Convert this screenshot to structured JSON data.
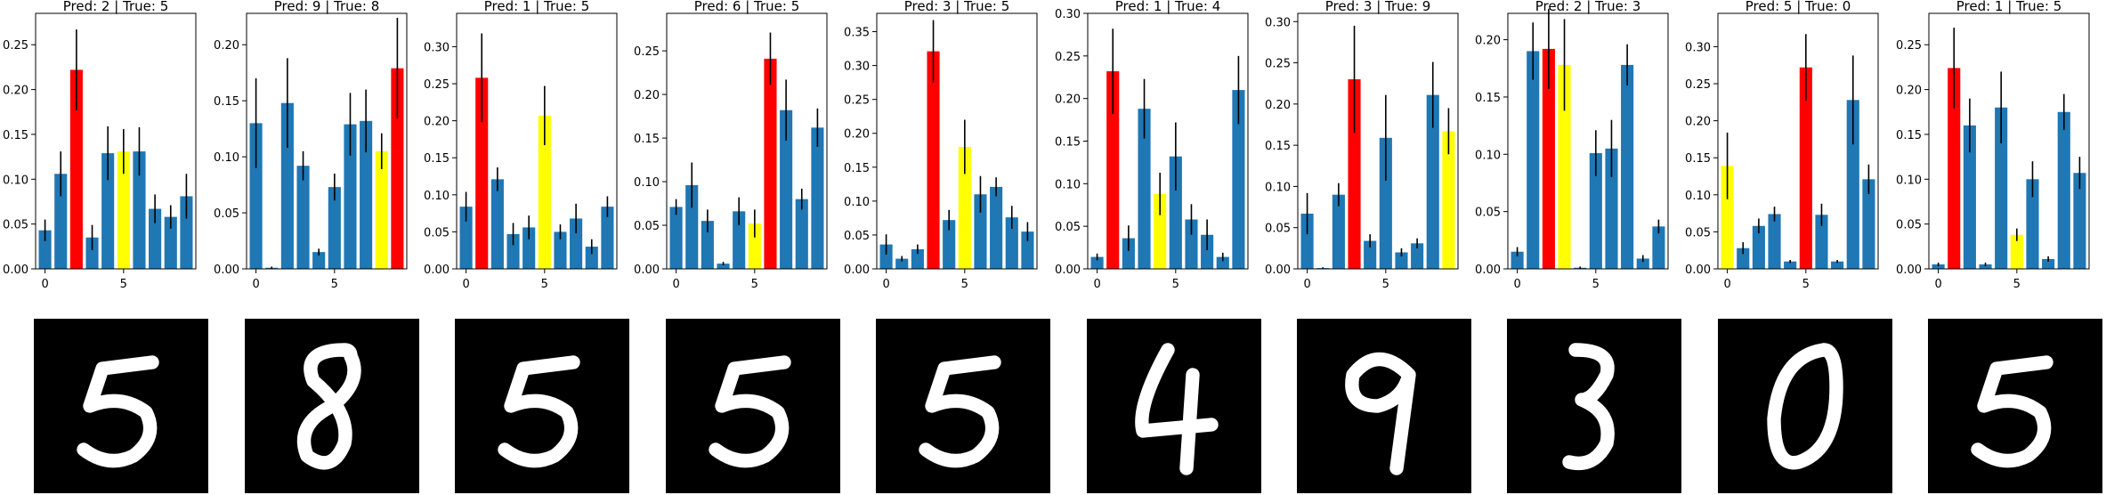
{
  "colors": {
    "bar": "#1f77b4",
    "predicted": "#ff0000",
    "true": "#ffff00",
    "error": "#000000",
    "image_bg": "#000000"
  },
  "chart_data": [
    {
      "type": "bar",
      "title": "Pred: 2 | True: 5",
      "pred": 2,
      "true": 5,
      "categories": [
        0,
        1,
        2,
        3,
        4,
        5,
        6,
        7,
        8,
        9
      ],
      "xticks": [
        "0",
        "5"
      ],
      "values": [
        0.043,
        0.106,
        0.222,
        0.035,
        0.129,
        0.131,
        0.131,
        0.067,
        0.058,
        0.081
      ],
      "errors": [
        0.012,
        0.025,
        0.045,
        0.014,
        0.03,
        0.025,
        0.027,
        0.016,
        0.013,
        0.025
      ],
      "ylim": [
        0,
        0.285
      ],
      "yticks": [
        "0.00",
        "0.05",
        "0.10",
        "0.15",
        "0.20",
        "0.25"
      ],
      "ytick_values": [
        0,
        0.05,
        0.1,
        0.15,
        0.2,
        0.25
      ],
      "digit_icon": "handwritten-digit-5"
    },
    {
      "type": "bar",
      "title": "Pred: 9 | True: 8",
      "pred": 9,
      "true": 8,
      "categories": [
        0,
        1,
        2,
        3,
        4,
        5,
        6,
        7,
        8,
        9
      ],
      "xticks": [
        "0",
        "5"
      ],
      "values": [
        0.13,
        0.001,
        0.148,
        0.092,
        0.015,
        0.073,
        0.129,
        0.132,
        0.105,
        0.179
      ],
      "errors": [
        0.04,
        0.001,
        0.04,
        0.013,
        0.003,
        0.012,
        0.028,
        0.028,
        0.016,
        0.045
      ],
      "ylim": [
        0,
        0.228
      ],
      "yticks": [
        "0.00",
        "0.05",
        "0.10",
        "0.15",
        "0.20"
      ],
      "ytick_values": [
        0,
        0.05,
        0.1,
        0.15,
        0.2
      ],
      "digit_icon": "handwritten-digit-8"
    },
    {
      "type": "bar",
      "title": "Pred: 1 | True: 5",
      "pred": 1,
      "true": 5,
      "categories": [
        0,
        1,
        2,
        3,
        4,
        5,
        6,
        7,
        8,
        9
      ],
      "xticks": [
        "0",
        "5"
      ],
      "values": [
        0.084,
        0.258,
        0.121,
        0.047,
        0.056,
        0.207,
        0.05,
        0.068,
        0.03,
        0.084
      ],
      "errors": [
        0.02,
        0.06,
        0.016,
        0.015,
        0.016,
        0.04,
        0.01,
        0.02,
        0.01,
        0.014
      ],
      "ylim": [
        0,
        0.345
      ],
      "yticks": [
        "0.00",
        "0.05",
        "0.10",
        "0.15",
        "0.20",
        "0.25",
        "0.30"
      ],
      "ytick_values": [
        0,
        0.05,
        0.1,
        0.15,
        0.2,
        0.25,
        0.3
      ],
      "digit_icon": "handwritten-digit-5"
    },
    {
      "type": "bar",
      "title": "Pred: 6 | True: 5",
      "pred": 6,
      "true": 5,
      "categories": [
        0,
        1,
        2,
        3,
        4,
        5,
        6,
        7,
        8,
        9
      ],
      "xticks": [
        "0",
        "5"
      ],
      "values": [
        0.071,
        0.096,
        0.055,
        0.006,
        0.066,
        0.052,
        0.241,
        0.182,
        0.08,
        0.162
      ],
      "errors": [
        0.009,
        0.026,
        0.013,
        0.002,
        0.016,
        0.016,
        0.03,
        0.035,
        0.012,
        0.022
      ],
      "ylim": [
        0,
        0.293
      ],
      "yticks": [
        "0.00",
        "0.05",
        "0.10",
        "0.15",
        "0.20",
        "0.25"
      ],
      "ytick_values": [
        0,
        0.05,
        0.1,
        0.15,
        0.2,
        0.25
      ],
      "digit_icon": "handwritten-digit-5"
    },
    {
      "type": "bar",
      "title": "Pred: 3 | True: 5",
      "pred": 3,
      "true": 5,
      "categories": [
        0,
        1,
        2,
        3,
        4,
        5,
        6,
        7,
        8,
        9
      ],
      "xticks": [
        "0",
        "5"
      ],
      "values": [
        0.036,
        0.015,
        0.029,
        0.321,
        0.072,
        0.18,
        0.11,
        0.121,
        0.076,
        0.055
      ],
      "errors": [
        0.015,
        0.004,
        0.007,
        0.046,
        0.015,
        0.04,
        0.027,
        0.014,
        0.017,
        0.014
      ],
      "ylim": [
        0,
        0.377
      ],
      "yticks": [
        "0.00",
        "0.05",
        "0.10",
        "0.15",
        "0.20",
        "0.25",
        "0.30",
        "0.35"
      ],
      "ytick_values": [
        0,
        0.05,
        0.1,
        0.15,
        0.2,
        0.25,
        0.3,
        0.35
      ],
      "digit_icon": "handwritten-digit-5"
    },
    {
      "type": "bar",
      "title": "Pred: 1 | True: 4",
      "pred": 1,
      "true": 4,
      "categories": [
        0,
        1,
        2,
        3,
        4,
        5,
        6,
        7,
        8,
        9
      ],
      "xticks": [
        "0",
        "5"
      ],
      "values": [
        0.014,
        0.232,
        0.036,
        0.188,
        0.088,
        0.132,
        0.058,
        0.04,
        0.014,
        0.21
      ],
      "errors": [
        0.004,
        0.05,
        0.015,
        0.035,
        0.025,
        0.04,
        0.018,
        0.018,
        0.005,
        0.04
      ],
      "ylim": [
        0,
        0.3
      ],
      "yticks": [
        "0.00",
        "0.05",
        "0.10",
        "0.15",
        "0.20",
        "0.25",
        "0.30"
      ],
      "ytick_values": [
        0,
        0.05,
        0.1,
        0.15,
        0.2,
        0.25,
        0.3
      ],
      "digit_icon": "handwritten-digit-4"
    },
    {
      "type": "bar",
      "title": "Pred: 3 | True: 9",
      "pred": 3,
      "true": 9,
      "categories": [
        0,
        1,
        2,
        3,
        4,
        5,
        6,
        7,
        8,
        9
      ],
      "xticks": [
        "0",
        "5"
      ],
      "values": [
        0.067,
        0.001,
        0.09,
        0.23,
        0.034,
        0.159,
        0.02,
        0.031,
        0.211,
        0.167
      ],
      "errors": [
        0.025,
        0.001,
        0.014,
        0.065,
        0.008,
        0.052,
        0.005,
        0.006,
        0.04,
        0.028
      ],
      "ylim": [
        0,
        0.31
      ],
      "yticks": [
        "0.00",
        "0.05",
        "0.10",
        "0.15",
        "0.20",
        "0.25",
        "0.30"
      ],
      "ytick_values": [
        0,
        0.05,
        0.1,
        0.15,
        0.2,
        0.25,
        0.3
      ],
      "digit_icon": "handwritten-digit-9"
    },
    {
      "type": "bar",
      "title": "Pred: 2 | True: 3",
      "pred": 2,
      "true": 3,
      "categories": [
        0,
        1,
        2,
        3,
        4,
        5,
        6,
        7,
        8,
        9
      ],
      "xticks": [
        "0",
        "5"
      ],
      "values": [
        0.015,
        0.19,
        0.192,
        0.178,
        0.001,
        0.101,
        0.105,
        0.178,
        0.009,
        0.037
      ],
      "errors": [
        0.004,
        0.025,
        0.035,
        0.04,
        0.001,
        0.02,
        0.025,
        0.018,
        0.003,
        0.006
      ],
      "ylim": [
        0,
        0.223
      ],
      "yticks": [
        "0.00",
        "0.05",
        "0.10",
        "0.15",
        "0.20"
      ],
      "ytick_values": [
        0,
        0.05,
        0.1,
        0.15,
        0.2
      ],
      "digit_icon": "handwritten-digit-3"
    },
    {
      "type": "bar",
      "title": "Pred: 5 | True: 0",
      "pred": 5,
      "true": 0,
      "categories": [
        0,
        1,
        2,
        3,
        4,
        5,
        6,
        7,
        8,
        9
      ],
      "xticks": [
        "0",
        "5"
      ],
      "values": [
        0.139,
        0.028,
        0.058,
        0.074,
        0.01,
        0.272,
        0.073,
        0.01,
        0.228,
        0.121
      ],
      "errors": [
        0.045,
        0.008,
        0.01,
        0.01,
        0.002,
        0.045,
        0.015,
        0.002,
        0.06,
        0.02
      ],
      "ylim": [
        0,
        0.345
      ],
      "yticks": [
        "0.00",
        "0.05",
        "0.10",
        "0.15",
        "0.20",
        "0.25",
        "0.30"
      ],
      "ytick_values": [
        0,
        0.05,
        0.1,
        0.15,
        0.2,
        0.25,
        0.3
      ],
      "digit_icon": "handwritten-digit-0"
    },
    {
      "type": "bar",
      "title": "Pred: 1 | True: 5",
      "pred": 1,
      "true": 5,
      "categories": [
        0,
        1,
        2,
        3,
        4,
        5,
        6,
        7,
        8,
        9
      ],
      "xticks": [
        "0",
        "5"
      ],
      "values": [
        0.005,
        0.224,
        0.16,
        0.005,
        0.18,
        0.038,
        0.1,
        0.011,
        0.175,
        0.107
      ],
      "errors": [
        0.002,
        0.045,
        0.03,
        0.002,
        0.04,
        0.007,
        0.02,
        0.003,
        0.02,
        0.018
      ],
      "ylim": [
        0,
        0.285
      ],
      "yticks": [
        "0.00",
        "0.05",
        "0.10",
        "0.15",
        "0.20",
        "0.25"
      ],
      "ytick_values": [
        0,
        0.05,
        0.1,
        0.15,
        0.2,
        0.25
      ],
      "digit_icon": "handwritten-digit-5"
    }
  ]
}
